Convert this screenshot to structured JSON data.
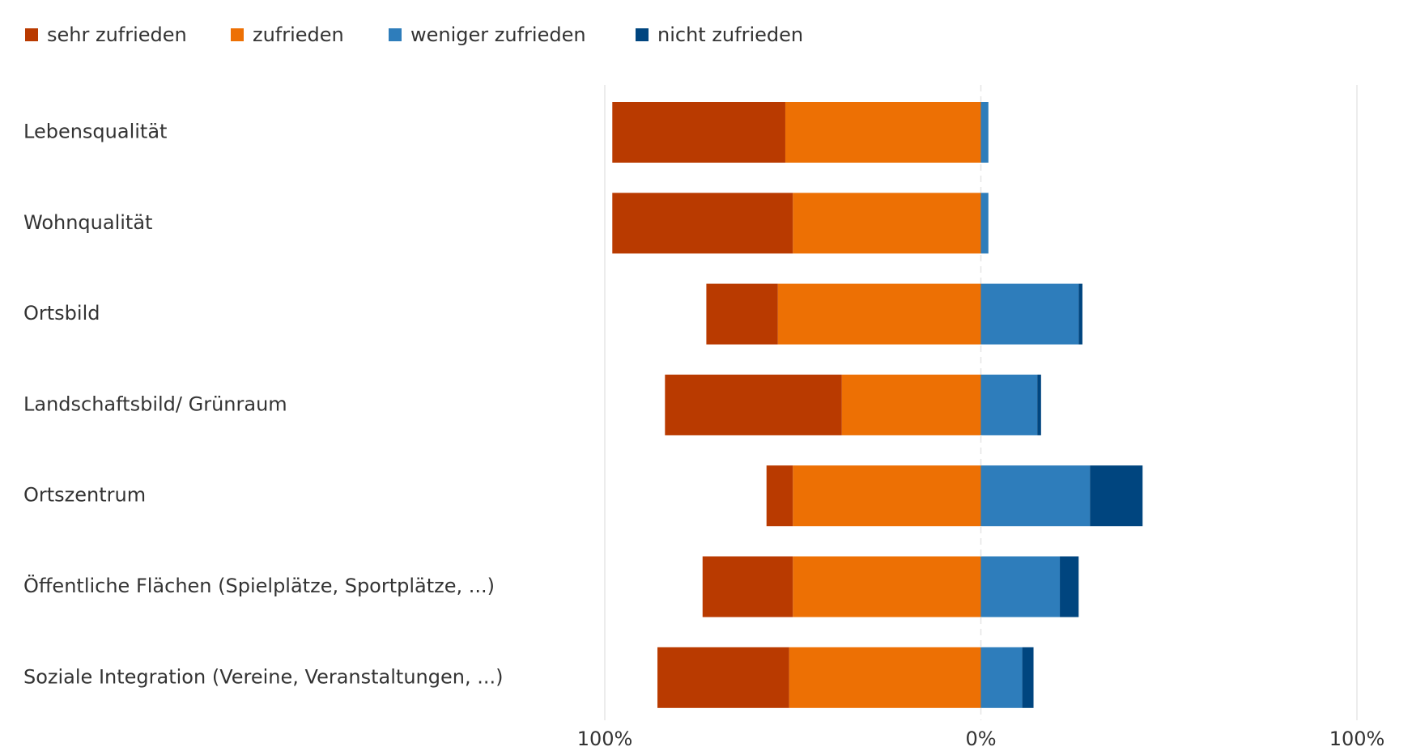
{
  "chart_data": {
    "type": "diverging_bar",
    "categories": [
      "Lebensqualität",
      "Wohnqualität",
      "Ortsbild",
      "Landschaftsbild/ Grünraum",
      "Ortszentrum",
      "Öffentliche Flächen (Spielplätze, Sportplätze, ...)",
      "Soziale Integration (Vereine, Veranstaltungen, ...)"
    ],
    "series": [
      {
        "name": "sehr zufrieden",
        "color": "#b93a00",
        "values": [
          46,
          48,
          19,
          47,
          7,
          24,
          35
        ]
      },
      {
        "name": "zufrieden",
        "color": "#ed7004",
        "values": [
          52,
          50,
          54,
          37,
          50,
          50,
          51
        ]
      },
      {
        "name": "weniger zufrieden",
        "color": "#2e7dbb",
        "values": [
          2,
          2,
          26,
          15,
          29,
          21,
          11
        ]
      },
      {
        "name": "nicht zufrieden",
        "color": "#00457f",
        "values": [
          0,
          0,
          1,
          1,
          14,
          5,
          3
        ]
      }
    ],
    "xlim": [
      -100,
      100
    ],
    "xticks": [
      {
        "value": -100,
        "label": "100%"
      },
      {
        "value": 0,
        "label": "0%"
      },
      {
        "value": 100,
        "label": "100%"
      }
    ],
    "grid": true,
    "legend": "top-left"
  }
}
